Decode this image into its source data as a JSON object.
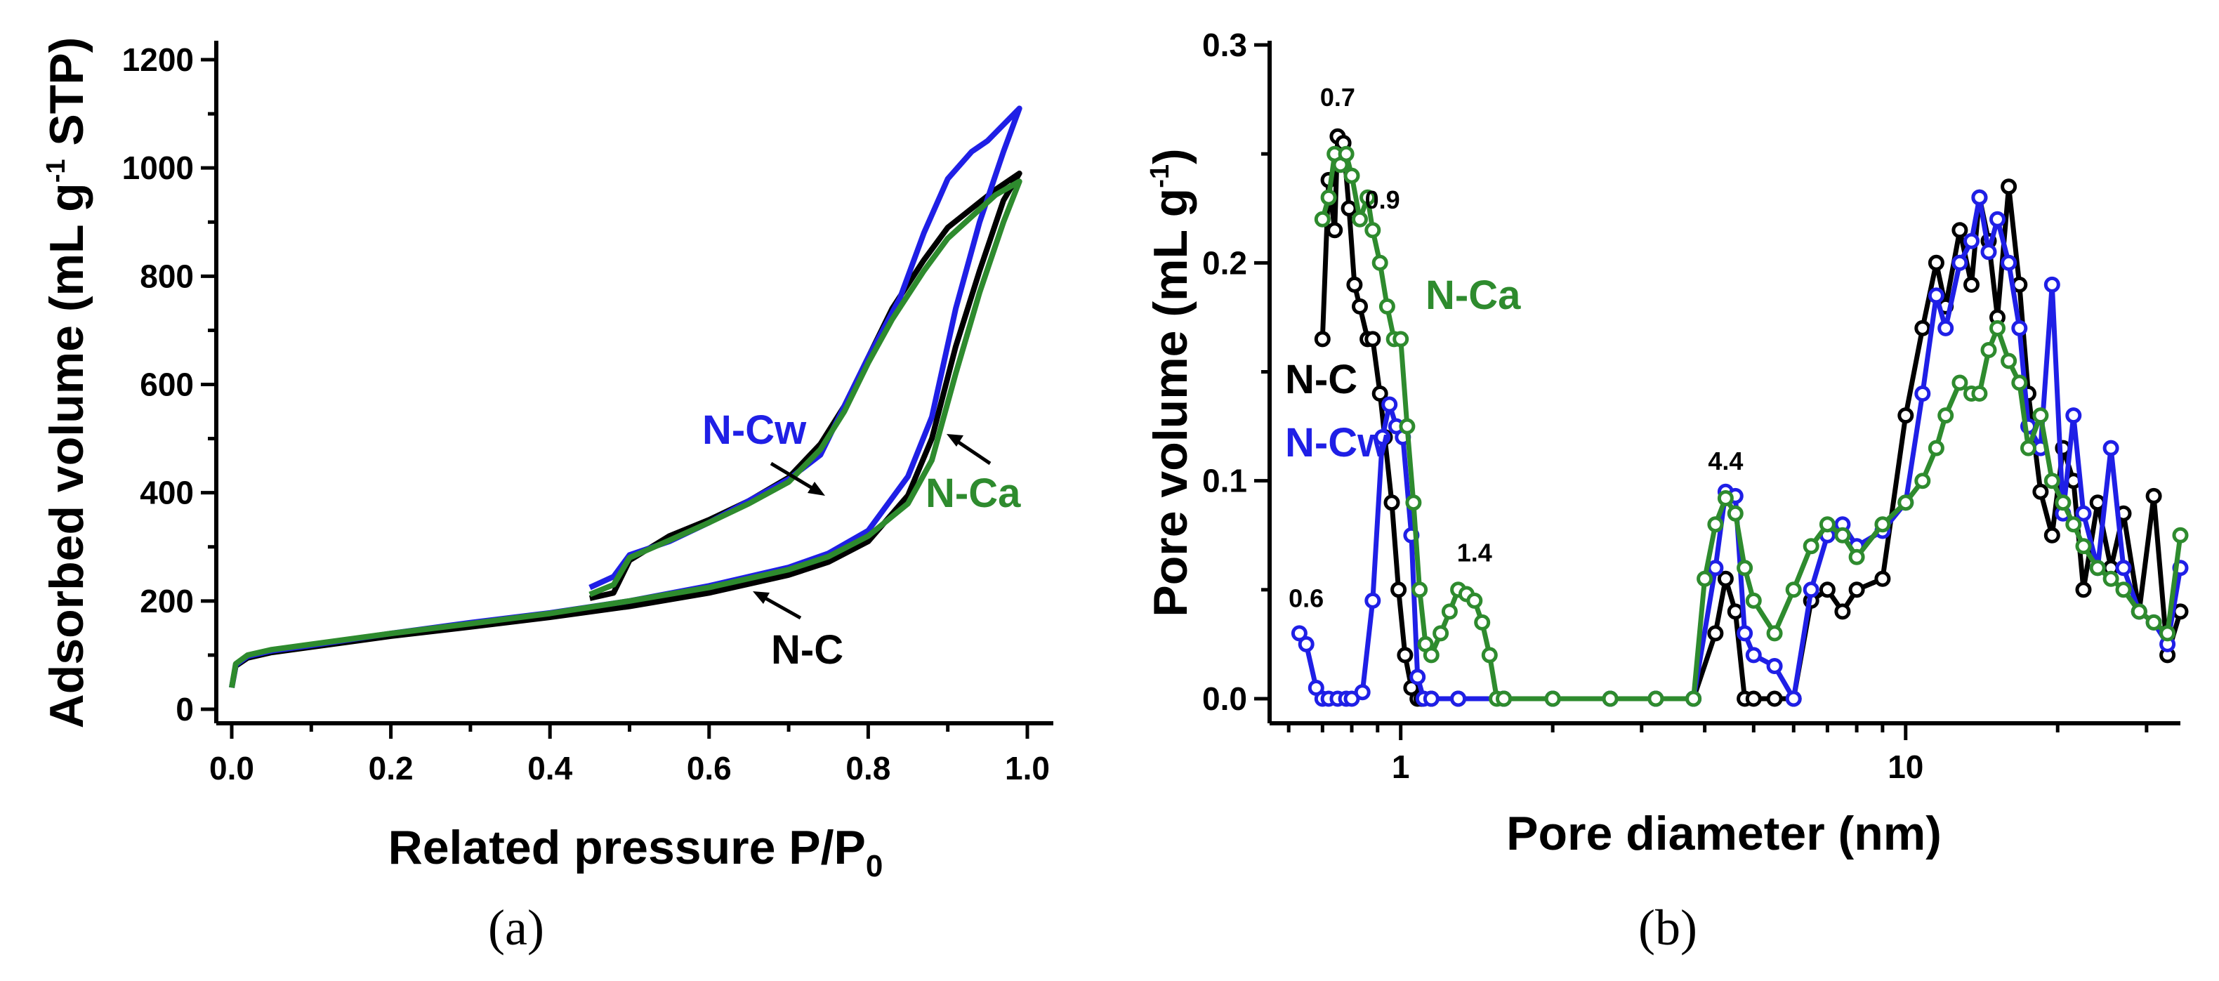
{
  "colors": {
    "N-C": "#000000",
    "N-Cw": "#1f1fe6",
    "N-Ca": "#2e8b2e"
  },
  "chart_data": [
    {
      "type": "line",
      "panel": "(a)",
      "xlabel": "Related pressure P/P",
      "xlabel_sub": "0",
      "ylabel_main": "Adsorbed volume (mL g",
      "ylabel_sup": "-1",
      "ylabel_end": " STP)",
      "xlim": [
        0.0,
        1.0
      ],
      "ylim": [
        0,
        1200
      ],
      "xticks": [
        0.0,
        0.2,
        0.4,
        0.6,
        0.8,
        1.0
      ],
      "xtick_labels": [
        "0.0",
        "0.2",
        "0.4",
        "0.6",
        "0.8",
        "1.0"
      ],
      "yticks": [
        0,
        200,
        400,
        600,
        800,
        1000,
        1200
      ],
      "ytick_labels": [
        "0",
        "200",
        "400",
        "600",
        "800",
        "1000",
        "1200"
      ],
      "series": [
        {
          "name": "N-C",
          "adsorption": [
            [
              0.0,
              40
            ],
            [
              0.005,
              80
            ],
            [
              0.02,
              95
            ],
            [
              0.05,
              105
            ],
            [
              0.1,
              115
            ],
            [
              0.2,
              135
            ],
            [
              0.3,
              152
            ],
            [
              0.4,
              170
            ],
            [
              0.5,
              190
            ],
            [
              0.6,
              215
            ],
            [
              0.7,
              248
            ],
            [
              0.75,
              272
            ],
            [
              0.8,
              310
            ],
            [
              0.85,
              395
            ],
            [
              0.88,
              500
            ],
            [
              0.91,
              670
            ],
            [
              0.94,
              810
            ],
            [
              0.97,
              940
            ],
            [
              0.99,
              990
            ]
          ],
          "desorption": [
            [
              0.99,
              990
            ],
            [
              0.96,
              960
            ],
            [
              0.93,
              925
            ],
            [
              0.9,
              890
            ],
            [
              0.87,
              830
            ],
            [
              0.83,
              740
            ],
            [
              0.8,
              650
            ],
            [
              0.77,
              560
            ],
            [
              0.74,
              490
            ],
            [
              0.7,
              428
            ],
            [
              0.65,
              385
            ],
            [
              0.6,
              350
            ],
            [
              0.55,
              320
            ],
            [
              0.5,
              275
            ],
            [
              0.48,
              215
            ],
            [
              0.45,
              205
            ]
          ]
        },
        {
          "name": "N-Cw",
          "adsorption": [
            [
              0.0,
              40
            ],
            [
              0.005,
              82
            ],
            [
              0.02,
              98
            ],
            [
              0.05,
              108
            ],
            [
              0.1,
              118
            ],
            [
              0.2,
              140
            ],
            [
              0.3,
              160
            ],
            [
              0.4,
              178
            ],
            [
              0.5,
              200
            ],
            [
              0.6,
              228
            ],
            [
              0.7,
              262
            ],
            [
              0.75,
              288
            ],
            [
              0.8,
              330
            ],
            [
              0.85,
              430
            ],
            [
              0.88,
              540
            ],
            [
              0.91,
              740
            ],
            [
              0.94,
              900
            ],
            [
              0.97,
              1030
            ],
            [
              0.99,
              1110
            ]
          ],
          "desorption": [
            [
              0.99,
              1110
            ],
            [
              0.97,
              1080
            ],
            [
              0.95,
              1050
            ],
            [
              0.93,
              1030
            ],
            [
              0.9,
              980
            ],
            [
              0.87,
              880
            ],
            [
              0.84,
              760
            ],
            [
              0.8,
              650
            ],
            [
              0.77,
              560
            ],
            [
              0.74,
              470
            ],
            [
              0.7,
              425
            ],
            [
              0.65,
              385
            ],
            [
              0.6,
              345
            ],
            [
              0.55,
              310
            ],
            [
              0.5,
              285
            ],
            [
              0.48,
              245
            ],
            [
              0.45,
              225
            ]
          ]
        },
        {
          "name": "N-Ca",
          "adsorption": [
            [
              0.0,
              40
            ],
            [
              0.005,
              84
            ],
            [
              0.02,
              100
            ],
            [
              0.05,
              110
            ],
            [
              0.1,
              120
            ],
            [
              0.2,
              140
            ],
            [
              0.3,
              158
            ],
            [
              0.4,
              177
            ],
            [
              0.5,
              200
            ],
            [
              0.6,
              225
            ],
            [
              0.7,
              258
            ],
            [
              0.75,
              282
            ],
            [
              0.8,
              320
            ],
            [
              0.85,
              380
            ],
            [
              0.88,
              460
            ],
            [
              0.91,
              620
            ],
            [
              0.94,
              770
            ],
            [
              0.97,
              900
            ],
            [
              0.99,
              975
            ]
          ],
          "desorption": [
            [
              0.99,
              975
            ],
            [
              0.96,
              950
            ],
            [
              0.93,
              910
            ],
            [
              0.9,
              870
            ],
            [
              0.87,
              810
            ],
            [
              0.83,
              720
            ],
            [
              0.8,
              640
            ],
            [
              0.77,
              550
            ],
            [
              0.74,
              480
            ],
            [
              0.7,
              420
            ],
            [
              0.65,
              380
            ],
            [
              0.6,
              345
            ],
            [
              0.55,
              312
            ],
            [
              0.5,
              280
            ],
            [
              0.48,
              230
            ],
            [
              0.45,
              212
            ]
          ]
        }
      ],
      "annotations": {
        "N-Cw": "N-Cw",
        "N-Ca": "N-Ca",
        "N-C": "N-C"
      }
    },
    {
      "type": "line",
      "panel": "(b)",
      "xscale": "log",
      "xlabel": "Pore diameter (nm)",
      "ylabel_main": "Pore volume (mL g",
      "ylabel_sup": "-1",
      "ylabel_end": ")",
      "xlim": [
        0.55,
        35
      ],
      "ylim": [
        -0.005,
        0.3
      ],
      "xtick_labels": [
        "1",
        "10"
      ],
      "yticks": [
        0.0,
        0.1,
        0.2,
        0.3
      ],
      "ytick_labels": [
        "0.0",
        "0.1",
        "0.2",
        "0.3"
      ],
      "peak_labels": [
        {
          "text": "0.7",
          "x": 0.75,
          "y": 0.272
        },
        {
          "text": "0.9",
          "x": 0.92,
          "y": 0.225
        },
        {
          "text": "1.4",
          "x": 1.4,
          "y": 0.063
        },
        {
          "text": "0.6",
          "x": 0.65,
          "y": 0.042
        },
        {
          "text": "4.4",
          "x": 4.4,
          "y": 0.105
        }
      ],
      "series_labels": {
        "N-Ca": "N-Ca",
        "N-C": "N-C",
        "N-Cw": "N-Cw"
      },
      "series": [
        {
          "name": "N-C",
          "x": [
            0.7,
            0.72,
            0.74,
            0.75,
            0.77,
            0.79,
            0.81,
            0.83,
            0.86,
            0.88,
            0.91,
            0.93,
            0.96,
            0.99,
            1.02,
            1.05,
            1.08,
            1.1,
            1.15,
            1.3,
            1.6,
            2.0,
            2.6,
            3.2,
            3.8,
            4.2,
            4.4,
            4.6,
            4.8,
            5.0,
            5.5,
            6.0,
            6.5,
            7.0,
            7.5,
            8.0,
            9.0,
            10.0,
            10.8,
            11.5,
            12.0,
            12.8,
            13.5,
            14.0,
            14.6,
            15.2,
            16.0,
            16.8,
            17.5,
            18.5,
            19.5,
            20.5,
            21.5,
            22.5,
            24.0,
            25.5,
            27.0,
            29.0,
            31.0,
            33.0,
            35.0
          ],
          "y": [
            0.165,
            0.238,
            0.215,
            0.258,
            0.255,
            0.225,
            0.19,
            0.18,
            0.165,
            0.165,
            0.14,
            0.12,
            0.09,
            0.05,
            0.02,
            0.005,
            0.0,
            0.0,
            0.0,
            0.0,
            0.0,
            0.0,
            0.0,
            0.0,
            0.0,
            0.03,
            0.055,
            0.04,
            0.0,
            0.0,
            0.0,
            0.0,
            0.045,
            0.05,
            0.04,
            0.05,
            0.055,
            0.13,
            0.17,
            0.2,
            0.18,
            0.215,
            0.19,
            0.23,
            0.21,
            0.175,
            0.235,
            0.19,
            0.14,
            0.095,
            0.075,
            0.115,
            0.1,
            0.05,
            0.09,
            0.06,
            0.085,
            0.04,
            0.093,
            0.02,
            0.04
          ]
        },
        {
          "name": "N-Cw",
          "x": [
            0.63,
            0.65,
            0.68,
            0.7,
            0.72,
            0.75,
            0.78,
            0.8,
            0.84,
            0.88,
            0.92,
            0.95,
            0.98,
            1.01,
            1.05,
            1.08,
            1.11,
            1.15,
            1.3,
            1.6,
            2.0,
            2.6,
            3.2,
            3.8,
            4.2,
            4.4,
            4.6,
            4.8,
            5.0,
            5.5,
            6.0,
            6.5,
            7.0,
            7.5,
            8.0,
            9.0,
            10.0,
            10.8,
            11.5,
            12.0,
            12.8,
            13.5,
            14.0,
            14.6,
            15.2,
            16.0,
            16.8,
            17.5,
            18.5,
            19.5,
            20.5,
            21.5,
            22.5,
            24.0,
            25.5,
            27.0,
            29.0,
            31.0,
            33.0,
            35.0
          ],
          "y": [
            0.03,
            0.025,
            0.005,
            0.0,
            0.0,
            0.0,
            0.0,
            0.0,
            0.003,
            0.045,
            0.12,
            0.135,
            0.125,
            0.12,
            0.075,
            0.01,
            0.0,
            0.0,
            0.0,
            0.0,
            0.0,
            0.0,
            0.0,
            0.0,
            0.06,
            0.095,
            0.093,
            0.03,
            0.02,
            0.015,
            0.0,
            0.05,
            0.075,
            0.08,
            0.07,
            0.077,
            0.09,
            0.14,
            0.185,
            0.17,
            0.2,
            0.21,
            0.23,
            0.205,
            0.22,
            0.2,
            0.17,
            0.125,
            0.115,
            0.19,
            0.085,
            0.13,
            0.085,
            0.06,
            0.115,
            0.06,
            0.04,
            0.035,
            0.025,
            0.06
          ]
        },
        {
          "name": "N-Ca",
          "x": [
            0.7,
            0.72,
            0.74,
            0.76,
            0.78,
            0.8,
            0.83,
            0.86,
            0.88,
            0.91,
            0.94,
            0.97,
            1.0,
            1.03,
            1.06,
            1.09,
            1.12,
            1.15,
            1.2,
            1.25,
            1.3,
            1.35,
            1.4,
            1.45,
            1.5,
            1.55,
            1.6,
            2.0,
            2.6,
            3.2,
            3.8,
            4.0,
            4.2,
            4.4,
            4.6,
            4.8,
            5.0,
            5.5,
            6.0,
            6.5,
            7.0,
            7.5,
            8.0,
            9.0,
            10.0,
            10.8,
            11.5,
            12.0,
            12.8,
            13.5,
            14.0,
            14.6,
            15.2,
            16.0,
            16.8,
            17.5,
            18.5,
            19.5,
            20.5,
            21.5,
            22.5,
            24.0,
            25.5,
            27.0,
            29.0,
            31.0,
            33.0,
            35.0
          ],
          "y": [
            0.22,
            0.23,
            0.25,
            0.245,
            0.25,
            0.24,
            0.22,
            0.23,
            0.215,
            0.2,
            0.18,
            0.165,
            0.165,
            0.125,
            0.09,
            0.05,
            0.025,
            0.02,
            0.03,
            0.04,
            0.05,
            0.048,
            0.045,
            0.035,
            0.02,
            0.0,
            0.0,
            0.0,
            0.0,
            0.0,
            0.0,
            0.055,
            0.08,
            0.092,
            0.085,
            0.06,
            0.045,
            0.03,
            0.05,
            0.07,
            0.08,
            0.075,
            0.065,
            0.08,
            0.09,
            0.1,
            0.115,
            0.13,
            0.145,
            0.14,
            0.14,
            0.16,
            0.17,
            0.155,
            0.145,
            0.115,
            0.13,
            0.1,
            0.09,
            0.08,
            0.07,
            0.06,
            0.055,
            0.05,
            0.04,
            0.035,
            0.03,
            0.075
          ]
        }
      ]
    }
  ]
}
